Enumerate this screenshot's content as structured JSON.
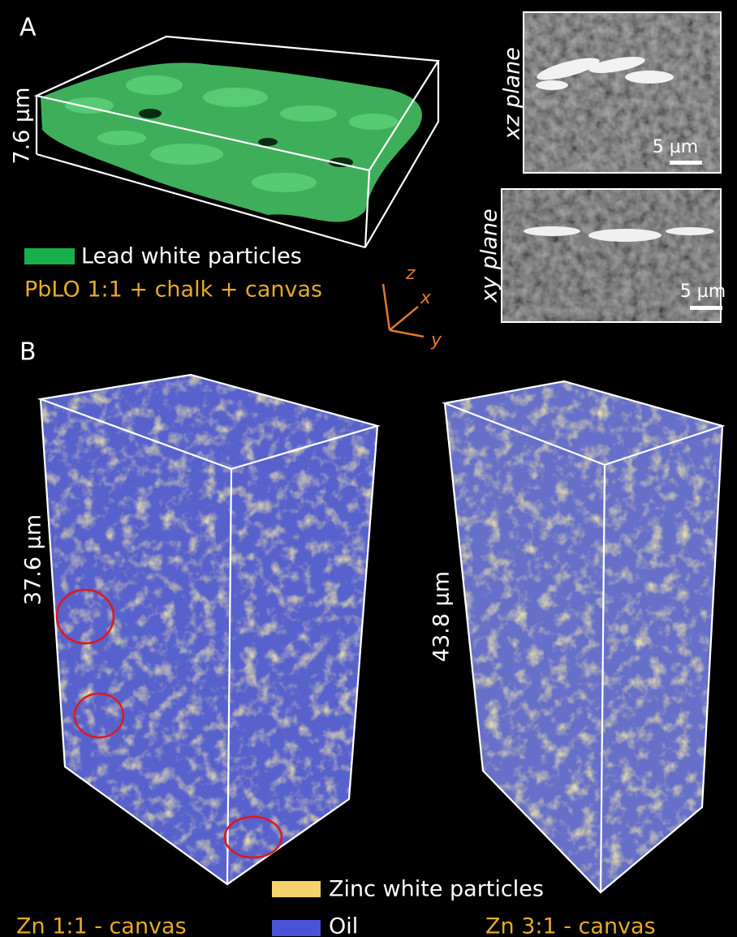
{
  "panel_a": {
    "label": "A",
    "scale_label": "7.6 µm",
    "legend": "Lead white particles",
    "sample": "PbLO 1:1 + chalk + canvas",
    "axes": {
      "z": "z",
      "x": "x",
      "y": "y"
    },
    "insets": [
      {
        "plane": "xz plane",
        "scale_bar": "5 µm"
      },
      {
        "plane": "xy plane",
        "scale_bar": "5 µm"
      }
    ]
  },
  "panel_b": {
    "label": "B",
    "legend": [
      "Zinc white particles",
      "Oil"
    ],
    "samples": [
      {
        "name": "Zn 1:1 - canvas",
        "scale_label": "37.6 µm"
      },
      {
        "name": "Zn 3:1 - canvas",
        "scale_label": "43.8 µm"
      }
    ]
  }
}
